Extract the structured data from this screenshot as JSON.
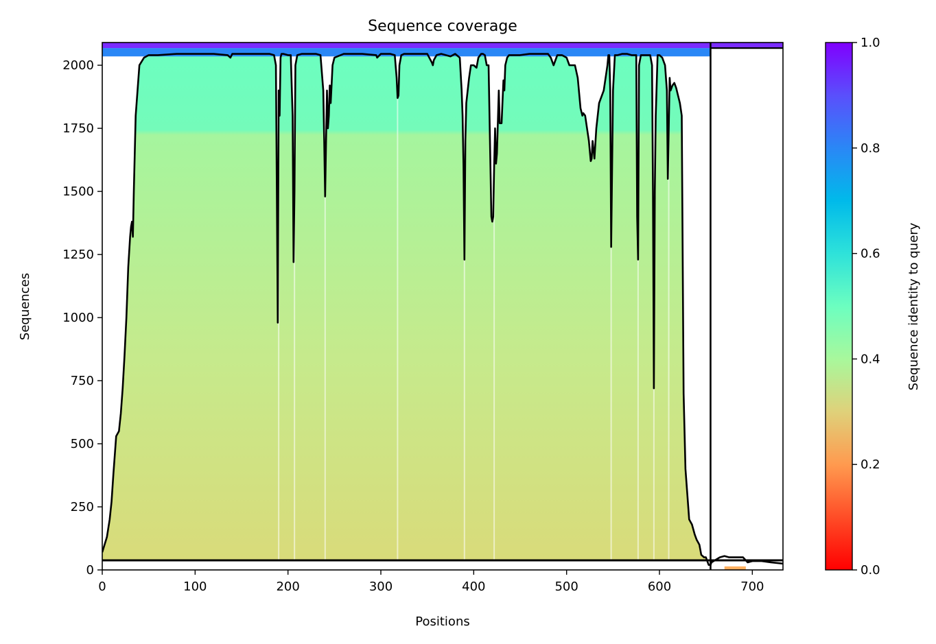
{
  "chart_data": {
    "type": "heatmap",
    "title": "Sequence coverage",
    "xlabel": "Positions",
    "ylabel": "Sequences",
    "xlim": [
      0,
      733
    ],
    "ylim": [
      0,
      2090
    ],
    "xticks": [
      0,
      100,
      200,
      300,
      400,
      500,
      600,
      700
    ],
    "yticks": [
      0,
      250,
      500,
      750,
      1000,
      1250,
      1500,
      1750,
      2000
    ],
    "colorbar": {
      "label": "Sequence identity to query",
      "range": [
        0,
        1
      ],
      "ticks": [
        "0.0",
        "0.2",
        "0.4",
        "0.6",
        "0.8",
        "1.0"
      ],
      "colormap": "rainbow_r"
    },
    "boundaries": {
      "vertical_line_x": 655,
      "horizontal_line_y_low": 38,
      "horizontal_line_y_high": 2068
    },
    "coverage_line": {
      "name": "coverage",
      "color": "#000000",
      "x": [
        0,
        5,
        8,
        10,
        12,
        15,
        18,
        20,
        22,
        24,
        26,
        28,
        30,
        31,
        32,
        33,
        34,
        36,
        38,
        40,
        45,
        50,
        60,
        80,
        100,
        120,
        135,
        138,
        140,
        150,
        160,
        170,
        180,
        185,
        187,
        188,
        189,
        190,
        191,
        192,
        193,
        195,
        200,
        203,
        205,
        206,
        207,
        208,
        210,
        215,
        220,
        230,
        235,
        238,
        239,
        240,
        241,
        242,
        243,
        244,
        245,
        246,
        248,
        250,
        260,
        280,
        295,
        296,
        300,
        310,
        315,
        317,
        318,
        319,
        320,
        322,
        325,
        330,
        340,
        350,
        355,
        356,
        357,
        360,
        365,
        370,
        375,
        380,
        385,
        387,
        388,
        389,
        390,
        391,
        392,
        395,
        397,
        400,
        403,
        405,
        408,
        410,
        412,
        414,
        416,
        418,
        419,
        420,
        421,
        422,
        423,
        424,
        425,
        427,
        428,
        430,
        432,
        433,
        434,
        436,
        438,
        440,
        450,
        460,
        470,
        480,
        483,
        486,
        490,
        495,
        500,
        503,
        506,
        509,
        512,
        515,
        517,
        518,
        520,
        522,
        524,
        525,
        526,
        527,
        528,
        530,
        532,
        535,
        540,
        542,
        544,
        545,
        546,
        547,
        548,
        550,
        552,
        555,
        560,
        565,
        570,
        574,
        575,
        576,
        577,
        578,
        580,
        585,
        590,
        592,
        593,
        594,
        595,
        596,
        598,
        600,
        603,
        606,
        608,
        609,
        610,
        611,
        612,
        614,
        616,
        618,
        620,
        622,
        624,
        626,
        628,
        630,
        632,
        635,
        638,
        640,
        643,
        645,
        648,
        650,
        653,
        655,
        656,
        665,
        670,
        675,
        690,
        695,
        700,
        710,
        720,
        733
      ],
      "y": [
        70,
        130,
        200,
        270,
        380,
        530,
        550,
        620,
        720,
        850,
        1000,
        1200,
        1320,
        1360,
        1380,
        1320,
        1500,
        1800,
        1900,
        2000,
        2030,
        2040,
        2040,
        2045,
        2045,
        2045,
        2040,
        2030,
        2045,
        2045,
        2045,
        2045,
        2045,
        2040,
        2000,
        1500,
        980,
        1900,
        1800,
        2030,
        2045,
        2045,
        2040,
        2040,
        1800,
        1220,
        1500,
        2000,
        2040,
        2045,
        2045,
        2045,
        2040,
        1900,
        1700,
        1480,
        1700,
        1900,
        1750,
        1800,
        1920,
        1850,
        2000,
        2030,
        2045,
        2045,
        2040,
        2030,
        2045,
        2045,
        2040,
        1950,
        1870,
        1880,
        2000,
        2040,
        2045,
        2045,
        2045,
        2045,
        2010,
        2000,
        2020,
        2040,
        2045,
        2040,
        2035,
        2045,
        2030,
        1900,
        1800,
        1600,
        1230,
        1700,
        1850,
        1950,
        2000,
        2000,
        1990,
        2030,
        2045,
        2045,
        2040,
        2000,
        2000,
        1600,
        1400,
        1380,
        1400,
        1600,
        1750,
        1610,
        1650,
        1900,
        1770,
        1770,
        1940,
        1900,
        2000,
        2030,
        2040,
        2040,
        2040,
        2045,
        2045,
        2045,
        2030,
        2000,
        2040,
        2040,
        2030,
        2000,
        2000,
        2000,
        1950,
        1830,
        1800,
        1810,
        1800,
        1750,
        1700,
        1660,
        1620,
        1630,
        1700,
        1630,
        1750,
        1850,
        1900,
        1950,
        2000,
        2040,
        2040,
        1900,
        1280,
        1900,
        2040,
        2040,
        2045,
        2045,
        2040,
        2040,
        2040,
        1400,
        1230,
        2000,
        2040,
        2040,
        2040,
        2000,
        1500,
        720,
        1500,
        1800,
        2040,
        2040,
        2030,
        2000,
        1900,
        1550,
        1750,
        1950,
        1900,
        1920,
        1930,
        1910,
        1880,
        1850,
        1800,
        700,
        400,
        300,
        200,
        180,
        140,
        120,
        100,
        60,
        50,
        50,
        20,
        20,
        30,
        50,
        55,
        50,
        50,
        30,
        35,
        35,
        30,
        25
      ]
    }
  }
}
